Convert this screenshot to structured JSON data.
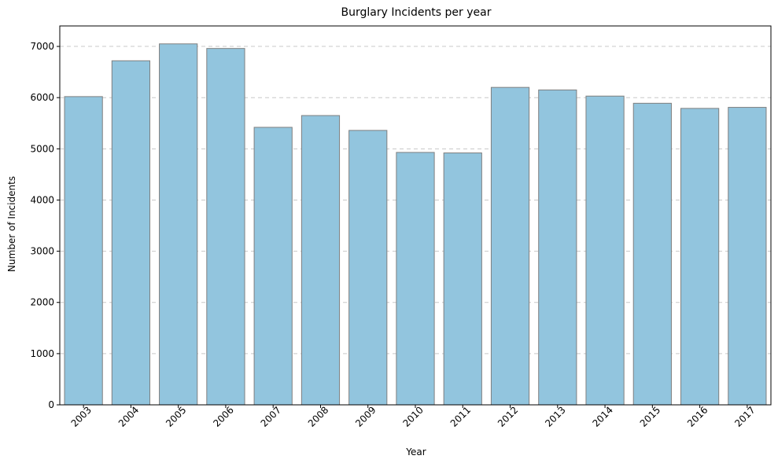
{
  "chart_data": {
    "type": "bar",
    "title": "Burglary Incidents per year",
    "xlabel": "Year",
    "ylabel": "Number of Incidents",
    "categories": [
      "2003",
      "2004",
      "2005",
      "2006",
      "2007",
      "2008",
      "2009",
      "2010",
      "2011",
      "2012",
      "2013",
      "2014",
      "2015",
      "2016",
      "2017"
    ],
    "values": [
      6020,
      6720,
      7050,
      6960,
      5420,
      5650,
      5360,
      4930,
      4920,
      6200,
      6150,
      6030,
      5890,
      5790,
      5810
    ],
    "ylim": [
      0,
      7400
    ],
    "yticks": [
      0,
      1000,
      2000,
      3000,
      4000,
      5000,
      6000,
      7000
    ],
    "grid": "y-dashed",
    "legend": "none",
    "colors": {
      "bar_fill": "#92c5de",
      "bar_edge": "#7f7f7f",
      "grid": "#c8c8c8"
    }
  }
}
